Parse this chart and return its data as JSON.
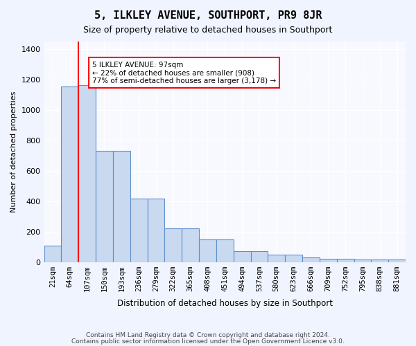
{
  "title": "5, ILKLEY AVENUE, SOUTHPORT, PR9 8JR",
  "subtitle": "Size of property relative to detached houses in Southport",
  "xlabel": "Distribution of detached houses by size in Southport",
  "ylabel": "Number of detached properties",
  "categories": [
    "21sqm",
    "64sqm",
    "107sqm",
    "150sqm",
    "193sqm",
    "236sqm",
    "279sqm",
    "322sqm",
    "365sqm",
    "408sqm",
    "451sqm",
    "494sqm",
    "537sqm",
    "580sqm",
    "623sqm",
    "666sqm",
    "709sqm",
    "752sqm",
    "795sqm",
    "838sqm",
    "881sqm"
  ],
  "values": [
    105,
    1155,
    1165,
    730,
    730,
    415,
    415,
    220,
    220,
    150,
    150,
    70,
    70,
    50,
    50,
    30,
    20,
    20,
    15,
    15,
    15
  ],
  "bar_color": "#c9d9f0",
  "bar_edge_color": "#5b8fcc",
  "red_line_x": 2,
  "annotation_text": "5 ILKLEY AVENUE: 97sqm\n← 22% of detached houses are smaller (908)\n77% of semi-detached houses are larger (3,178) →",
  "annotation_box_color": "white",
  "annotation_box_edge": "red",
  "ylim": [
    0,
    1450
  ],
  "yticks": [
    0,
    200,
    400,
    600,
    800,
    1000,
    1200,
    1400
  ],
  "footer1": "Contains HM Land Registry data © Crown copyright and database right 2024.",
  "footer2": "Contains public sector information licensed under the Open Government Licence v3.0.",
  "bg_color": "#f0f4ff",
  "plot_bg_color": "#f8f9ff"
}
